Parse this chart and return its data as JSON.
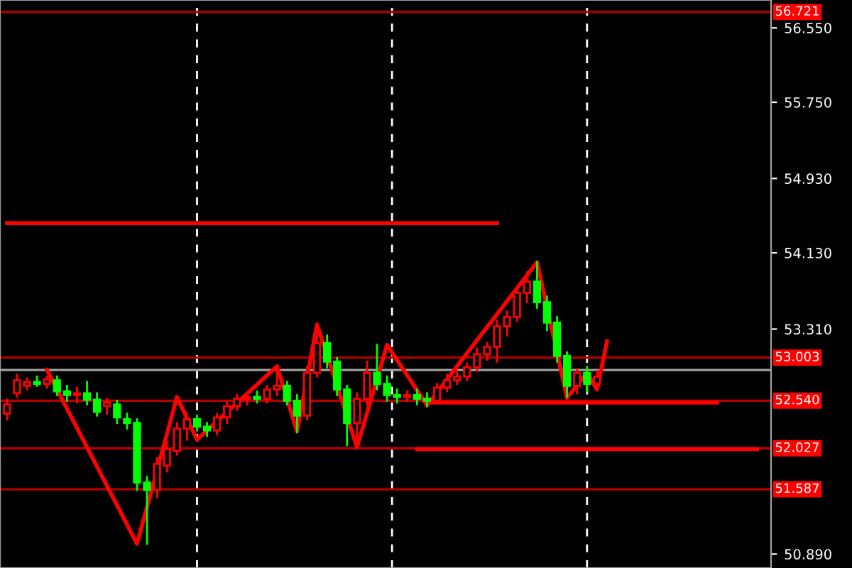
{
  "chart_data": {
    "type": "candlestick",
    "categories": [
      null,
      null,
      null,
      null,
      null,
      null,
      null,
      null,
      null,
      null,
      null,
      null,
      null,
      null,
      null,
      null,
      null,
      null,
      null,
      null,
      null,
      null,
      null,
      null,
      null,
      null,
      null,
      null,
      null,
      null,
      null,
      null,
      null,
      null,
      null,
      null,
      null,
      null,
      null,
      null,
      null,
      null,
      null,
      null,
      null,
      null,
      null,
      null,
      null,
      null,
      null,
      null,
      null,
      null,
      null,
      null,
      null,
      null,
      null,
      null,
      null,
      null,
      null,
      null,
      null,
      null,
      null,
      null,
      null,
      null,
      null,
      null,
      null,
      null,
      null,
      null,
      null
    ],
    "ohlc": [
      [
        52.4,
        52.55,
        52.34,
        52.5
      ],
      [
        52.62,
        52.82,
        52.58,
        52.76
      ],
      [
        52.7,
        52.78,
        52.66,
        52.74
      ],
      [
        52.74,
        52.8,
        52.7,
        52.72
      ],
      [
        52.72,
        52.8,
        52.68,
        52.77
      ],
      [
        52.76,
        52.8,
        52.6,
        52.64
      ],
      [
        52.64,
        52.7,
        52.54,
        52.6
      ],
      [
        52.6,
        52.68,
        52.52,
        52.62
      ],
      [
        52.62,
        52.74,
        52.5,
        52.55
      ],
      [
        52.55,
        52.62,
        52.38,
        52.42
      ],
      [
        52.48,
        52.56,
        52.4,
        52.52
      ],
      [
        52.5,
        52.54,
        52.3,
        52.36
      ],
      [
        52.34,
        52.4,
        52.24,
        52.3
      ],
      [
        52.3,
        52.34,
        51.58,
        51.66
      ],
      [
        51.66,
        51.72,
        51.0,
        51.58
      ],
      [
        51.58,
        51.92,
        51.5,
        51.86
      ],
      [
        51.84,
        52.1,
        51.78,
        52.02
      ],
      [
        52.0,
        52.3,
        51.96,
        52.24
      ],
      [
        52.24,
        52.4,
        52.12,
        52.34
      ],
      [
        52.34,
        52.38,
        52.22,
        52.26
      ],
      [
        52.26,
        52.3,
        52.16,
        52.22
      ],
      [
        52.22,
        52.4,
        52.18,
        52.36
      ],
      [
        52.36,
        52.52,
        52.3,
        52.48
      ],
      [
        52.48,
        52.6,
        52.44,
        52.56
      ],
      [
        52.56,
        52.62,
        52.5,
        52.58
      ],
      [
        52.58,
        52.64,
        52.52,
        52.56
      ],
      [
        52.56,
        52.7,
        52.52,
        52.66
      ],
      [
        52.66,
        52.9,
        52.6,
        52.7
      ],
      [
        52.7,
        52.74,
        52.5,
        52.54
      ],
      [
        52.54,
        52.6,
        52.2,
        52.38
      ],
      [
        52.38,
        52.9,
        52.34,
        52.84
      ],
      [
        52.84,
        53.3,
        52.8,
        53.16
      ],
      [
        53.16,
        53.24,
        52.9,
        52.96
      ],
      [
        52.96,
        53.0,
        52.6,
        52.66
      ],
      [
        52.66,
        52.7,
        52.06,
        52.3
      ],
      [
        52.3,
        52.62,
        52.04,
        52.56
      ],
      [
        52.56,
        52.96,
        52.5,
        52.84
      ],
      [
        52.84,
        53.14,
        52.66,
        52.72
      ],
      [
        52.72,
        52.8,
        52.54,
        52.6
      ],
      [
        52.6,
        52.66,
        52.52,
        52.58
      ],
      [
        52.58,
        52.64,
        52.54,
        52.6
      ],
      [
        52.6,
        52.66,
        52.5,
        52.56
      ],
      [
        52.56,
        52.62,
        52.48,
        52.54
      ],
      [
        52.54,
        52.72,
        52.52,
        52.68
      ],
      [
        52.68,
        52.82,
        52.64,
        52.76
      ],
      [
        52.76,
        52.86,
        52.72,
        52.8
      ],
      [
        52.8,
        52.94,
        52.76,
        52.9
      ],
      [
        52.9,
        53.1,
        52.86,
        53.04
      ],
      [
        53.04,
        53.16,
        52.98,
        53.12
      ],
      [
        53.12,
        53.4,
        52.96,
        53.34
      ],
      [
        53.34,
        53.5,
        53.24,
        53.44
      ],
      [
        53.44,
        53.76,
        53.4,
        53.7
      ],
      [
        53.7,
        53.92,
        53.6,
        53.82
      ],
      [
        53.82,
        54.03,
        53.54,
        53.6
      ],
      [
        53.6,
        53.66,
        53.3,
        53.38
      ],
      [
        53.38,
        53.44,
        52.96,
        53.02
      ],
      [
        53.02,
        53.06,
        52.58,
        52.7
      ],
      [
        52.7,
        52.88,
        52.62,
        52.84
      ],
      [
        52.84,
        52.9,
        52.64,
        52.72
      ],
      [
        52.72,
        52.86,
        52.66,
        52.8
      ],
      null,
      null,
      null,
      null,
      null,
      null,
      null,
      null,
      null,
      null,
      null,
      null,
      null,
      null,
      null,
      null,
      null
    ],
    "colors": [
      "#ff0000",
      "#ff0000",
      "#ff0000",
      "#00ff00",
      "#ff0000",
      "#00ff00",
      "#00ff00",
      "#ff0000",
      "#00ff00",
      "#00ff00",
      "#ff0000",
      "#00ff00",
      "#00ff00",
      "#00ff00",
      "#00ff00",
      "#ff0000",
      "#ff0000",
      "#ff0000",
      "#ff0000",
      "#00ff00",
      "#00ff00",
      "#ff0000",
      "#ff0000",
      "#ff0000",
      "#ff0000",
      "#00ff00",
      "#ff0000",
      "#ff0000",
      "#00ff00",
      "#00ff00",
      "#ff0000",
      "#ff0000",
      "#00ff00",
      "#00ff00",
      "#00ff00",
      "#ff0000",
      "#ff0000",
      "#00ff00",
      "#00ff00",
      "#00ff00",
      "#ff0000",
      "#00ff00",
      "#00ff00",
      "#ff0000",
      "#ff0000",
      "#ff0000",
      "#ff0000",
      "#ff0000",
      "#ff0000",
      "#ff0000",
      "#ff0000",
      "#ff0000",
      "#ff0000",
      "#00ff00",
      "#00ff00",
      "#00ff00",
      "#00ff00",
      "#ff0000",
      "#00ff00",
      "#ff0000",
      null,
      null,
      null,
      null,
      null,
      null,
      null,
      null,
      null,
      null,
      null,
      null,
      null,
      null,
      null,
      null,
      null
    ],
    "series": [
      {
        "type": "line",
        "color": "#ff0000",
        "values": [
          null,
          null,
          null,
          null,
          52.87,
          null,
          null,
          null,
          null,
          null,
          null,
          null,
          null,
          51.0,
          null,
          null,
          null,
          52.58,
          null,
          52.12,
          null,
          null,
          null,
          null,
          null,
          null,
          null,
          52.91,
          null,
          52.21,
          null,
          53.36,
          null,
          null,
          null,
          52.04,
          null,
          null,
          53.14,
          null,
          null,
          null,
          52.49,
          null,
          null,
          null,
          null,
          null,
          null,
          null,
          null,
          null,
          null,
          54.03,
          null,
          null,
          52.57,
          null,
          52.84,
          52.66,
          53.18,
          null,
          null,
          null,
          null,
          null,
          null,
          null,
          null,
          null,
          null,
          null,
          null,
          null,
          null,
          null,
          null
        ]
      },
      {
        "type": "line",
        "color": "#ff0000",
        "values": [
          54.45,
          null,
          null,
          null,
          null,
          null,
          null,
          null,
          null,
          null,
          null,
          null,
          null,
          null,
          null,
          null,
          null,
          null,
          null,
          null,
          null,
          null,
          null,
          null,
          null,
          null,
          null,
          null,
          null,
          null,
          null,
          null,
          null,
          null,
          null,
          null,
          null,
          null,
          null,
          null,
          null,
          null,
          null,
          null,
          null,
          null,
          null,
          null,
          null,
          54.45,
          null,
          null,
          null,
          null,
          null,
          null,
          null,
          null,
          null,
          null,
          null,
          null,
          null,
          null,
          null,
          null,
          null,
          null,
          null,
          null,
          null,
          null,
          null,
          null,
          null,
          null,
          null
        ]
      },
      {
        "type": "line",
        "color": "#ff0000",
        "values": [
          null,
          null,
          null,
          null,
          null,
          null,
          null,
          null,
          null,
          null,
          null,
          null,
          null,
          null,
          null,
          null,
          null,
          null,
          null,
          null,
          null,
          null,
          null,
          null,
          null,
          null,
          null,
          null,
          null,
          null,
          null,
          null,
          null,
          null,
          null,
          null,
          null,
          null,
          null,
          null,
          null,
          null,
          52.52,
          null,
          null,
          null,
          null,
          null,
          null,
          null,
          null,
          null,
          null,
          null,
          null,
          null,
          null,
          null,
          null,
          null,
          null,
          null,
          null,
          null,
          null,
          null,
          null,
          null,
          null,
          null,
          null,
          52.52,
          null,
          null,
          null,
          null,
          null
        ]
      },
      {
        "type": "line",
        "color": "#ff0000",
        "values": [
          null,
          null,
          null,
          null,
          null,
          null,
          null,
          null,
          null,
          null,
          null,
          null,
          null,
          null,
          null,
          null,
          null,
          null,
          null,
          null,
          null,
          null,
          null,
          null,
          null,
          null,
          null,
          null,
          null,
          null,
          null,
          null,
          null,
          null,
          null,
          null,
          null,
          null,
          null,
          null,
          null,
          52.02,
          null,
          null,
          null,
          null,
          null,
          null,
          null,
          null,
          null,
          null,
          null,
          null,
          null,
          null,
          null,
          null,
          null,
          null,
          null,
          null,
          null,
          null,
          null,
          null,
          null,
          null,
          null,
          null,
          null,
          null,
          null,
          null,
          null,
          52.02,
          null
        ]
      }
    ],
    "ref_lines": [
      {
        "axis": "y",
        "value": 56.721,
        "label": "56.721",
        "color": "#b00000"
      },
      {
        "axis": "y",
        "value": 53.003,
        "label": "53.003",
        "color": "#b00000"
      },
      {
        "axis": "y",
        "value": 52.87,
        "label": null,
        "color": "#a0a0a0"
      },
      {
        "axis": "y",
        "value": 52.54,
        "label": "52.540",
        "color": "#b00000"
      },
      {
        "axis": "y",
        "value": 52.027,
        "label": "52.027",
        "color": "#b00000"
      },
      {
        "axis": "y",
        "value": 51.587,
        "label": "51.587",
        "color": "#b00000"
      }
    ],
    "grid": "x",
    "ylim": [
      50.74,
      56.85
    ],
    "yticks": [
      {
        "value": 56.55,
        "label": "56.550"
      },
      {
        "value": 55.75,
        "label": "55.750"
      },
      {
        "value": 54.93,
        "label": "54.930"
      },
      {
        "value": 54.13,
        "label": "54.130"
      },
      {
        "value": 53.31,
        "label": "53.310"
      },
      {
        "value": 50.89,
        "label": "50.890"
      }
    ],
    "tick_labels": "y"
  }
}
